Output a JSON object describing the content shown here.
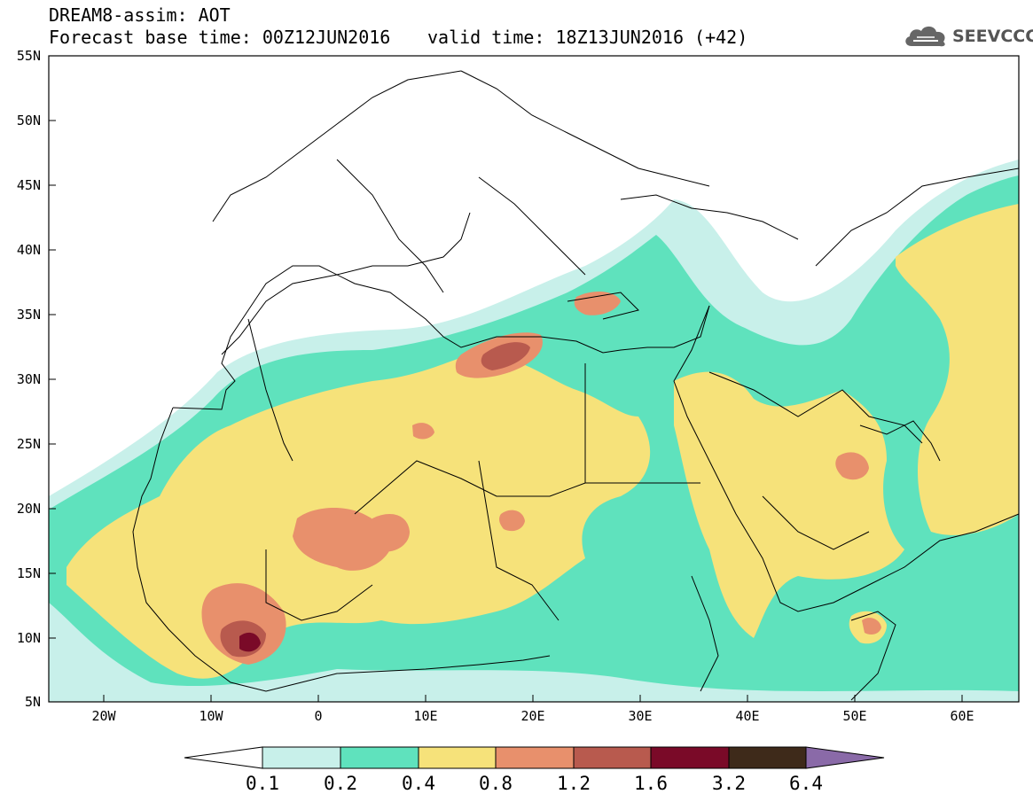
{
  "header": {
    "title": "DREAM8-assim: AOT",
    "base_time": "Forecast base time: 00Z12JUN2016",
    "valid_time": "valid time: 18Z13JUN2016 (+42)",
    "logo_text": "SEEVCCC"
  },
  "map": {
    "lat_ticks": [
      "55N",
      "50N",
      "45N",
      "40N",
      "35N",
      "30N",
      "25N",
      "20N",
      "15N",
      "10N",
      "5N"
    ],
    "lon_ticks": [
      "20W",
      "10W",
      "0",
      "10E",
      "20E",
      "30E",
      "40E",
      "50E",
      "60E"
    ]
  },
  "colorbar": {
    "ticks": [
      "0.1",
      "0.2",
      "0.4",
      "0.8",
      "1.2",
      "1.6",
      "3.2",
      "6.4"
    ],
    "colors": [
      "#c8f0ea",
      "#5fe2bd",
      "#f6e27a",
      "#e8906c",
      "#b85a4e",
      "#7a0a28",
      "#3e2a1a",
      "#8a6aa8"
    ],
    "background_color": "#ffffff"
  }
}
